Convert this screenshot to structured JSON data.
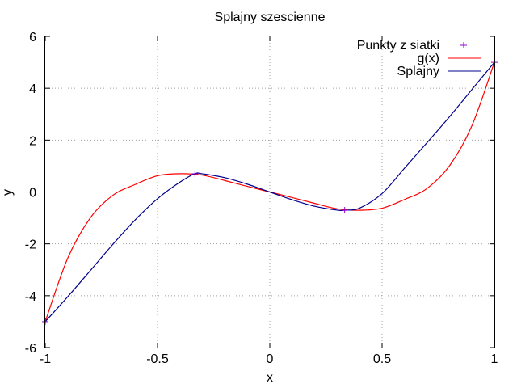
{
  "chart_data": {
    "type": "line",
    "title": "Splajny szescienne",
    "xlabel": "x",
    "ylabel": "y",
    "xlim": [
      -1,
      1
    ],
    "ylim": [
      -6,
      6
    ],
    "grid": true,
    "legend_position": "top-right",
    "x_ticks": [
      -1,
      -0.5,
      0,
      0.5,
      1
    ],
    "x_tick_labels": [
      "-1",
      "-0.5",
      "0",
      "0.5",
      "1"
    ],
    "y_ticks": [
      -6,
      -4,
      -2,
      0,
      2,
      4,
      6
    ],
    "y_tick_labels": [
      "-6",
      "-4",
      "-2",
      "0",
      "2",
      "4",
      "6"
    ],
    "series": [
      {
        "name": "Punkty z siatki",
        "kind": "points",
        "color": "#9400d3",
        "x": [
          -1,
          -0.3333,
          0.3333,
          1
        ],
        "y": [
          -5,
          0.7037,
          -0.7037,
          5
        ]
      },
      {
        "name": "g(x)",
        "kind": "line",
        "color": "#ff0000",
        "x": [
          -1,
          -0.9,
          -0.8,
          -0.7,
          -0.6,
          -0.5,
          -0.4,
          -0.3,
          -0.2,
          -0.1,
          0,
          0.1,
          0.2,
          0.3,
          0.4,
          0.5,
          0.6,
          0.7,
          0.8,
          0.9,
          1
        ],
        "y": [
          -5,
          -2.556,
          -1.008,
          -0.135,
          0.288,
          0.625,
          0.704,
          0.648,
          0.44,
          0.216,
          0,
          -0.216,
          -0.44,
          -0.648,
          -0.704,
          -0.625,
          -0.288,
          0.135,
          1.008,
          2.556,
          5
        ]
      },
      {
        "name": "Splajny",
        "kind": "line",
        "color": "#00008b",
        "x": [
          -1,
          -0.9,
          -0.8,
          -0.7,
          -0.6,
          -0.5,
          -0.4,
          -0.3333,
          -0.3,
          -0.2,
          -0.1,
          0,
          0.1,
          0.2,
          0.3,
          0.3333,
          0.4,
          0.5,
          0.6,
          0.7,
          0.8,
          0.9,
          1
        ],
        "y": [
          -5,
          -4.04,
          -3.04,
          -2.03,
          -1.08,
          -0.26,
          0.38,
          0.7037,
          0.7,
          0.55,
          0.3,
          0,
          -0.3,
          -0.55,
          -0.7,
          -0.7037,
          -0.62,
          -0.06,
          0.92,
          1.9,
          2.9,
          3.95,
          5
        ]
      }
    ]
  }
}
